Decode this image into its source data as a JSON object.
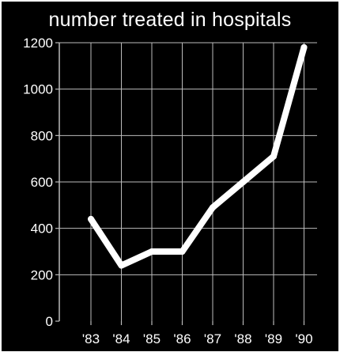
{
  "chart_data": {
    "type": "line",
    "title": "number treated in hospitals",
    "xlabel": "",
    "ylabel": "",
    "categories": [
      "'83",
      "'84",
      "'85",
      "'86",
      "'87",
      "'88",
      "'89",
      "'90"
    ],
    "y_ticks": [
      "0",
      "200",
      "400",
      "600",
      "800",
      "1000",
      "1200"
    ],
    "ylim": [
      0,
      1200
    ],
    "grid": true,
    "series": [
      {
        "values": [
          440,
          240,
          300,
          300,
          490,
          600,
          710,
          1180
        ]
      }
    ],
    "colors": {
      "background": "#000000",
      "line": "#ffffff",
      "grid": "#bbbbbb",
      "text": "#ffffff"
    }
  }
}
